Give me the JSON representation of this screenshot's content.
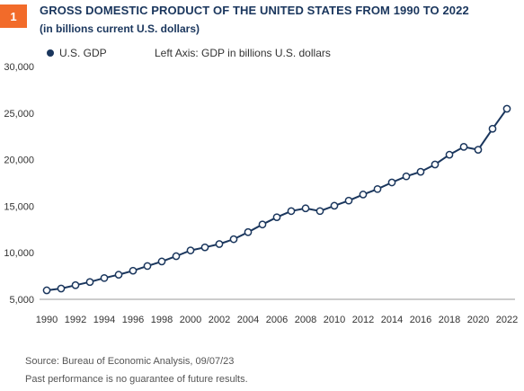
{
  "badge": "1",
  "chart_data": {
    "type": "line",
    "title": "GROSS DOMESTIC PRODUCT OF THE UNITED STATES FROM 1990 TO 2022",
    "subtitle": "(in billions current U.S. dollars)",
    "legend_label": "U.S. GDP",
    "axis_note": "Left Axis: GDP in billions U.S. dollars",
    "x": [
      1990,
      1991,
      1992,
      1993,
      1994,
      1995,
      1996,
      1997,
      1998,
      1999,
      2000,
      2001,
      2002,
      2003,
      2004,
      2005,
      2006,
      2007,
      2008,
      2009,
      2010,
      2011,
      2012,
      2013,
      2014,
      2015,
      2016,
      2017,
      2018,
      2019,
      2020,
      2021,
      2022
    ],
    "series": [
      {
        "name": "U.S. GDP",
        "values": [
          5963,
          6158,
          6520,
          6859,
          7287,
          7640,
          8073,
          8578,
          9063,
          9631,
          10251,
          10582,
          10936,
          11458,
          12214,
          13039,
          13816,
          14474,
          14770,
          14478,
          15049,
          15600,
          16254,
          16843,
          17551,
          18206,
          18695,
          19480,
          20527,
          21373,
          21060,
          23315,
          25464
        ]
      }
    ],
    "xticks": [
      "1990",
      "1992",
      "1994",
      "1996",
      "1998",
      "2000",
      "2002",
      "2004",
      "2006",
      "2008",
      "2010",
      "2012",
      "2014",
      "2016",
      "2018",
      "2020",
      "2022"
    ],
    "yticks": [
      "5,000",
      "10,000",
      "15,000",
      "20,000",
      "25,000",
      "30,000"
    ],
    "xlim": [
      1990,
      2022
    ],
    "ylim": [
      5000,
      30000
    ],
    "grid": false,
    "legend_position": "top-left",
    "line_color": "#1a365d",
    "accent_color": "#f26b2a"
  },
  "source": "Source: Bureau of Economic Analysis,  09/07/23",
  "disclaimer": "Past performance is no guarantee of future results."
}
